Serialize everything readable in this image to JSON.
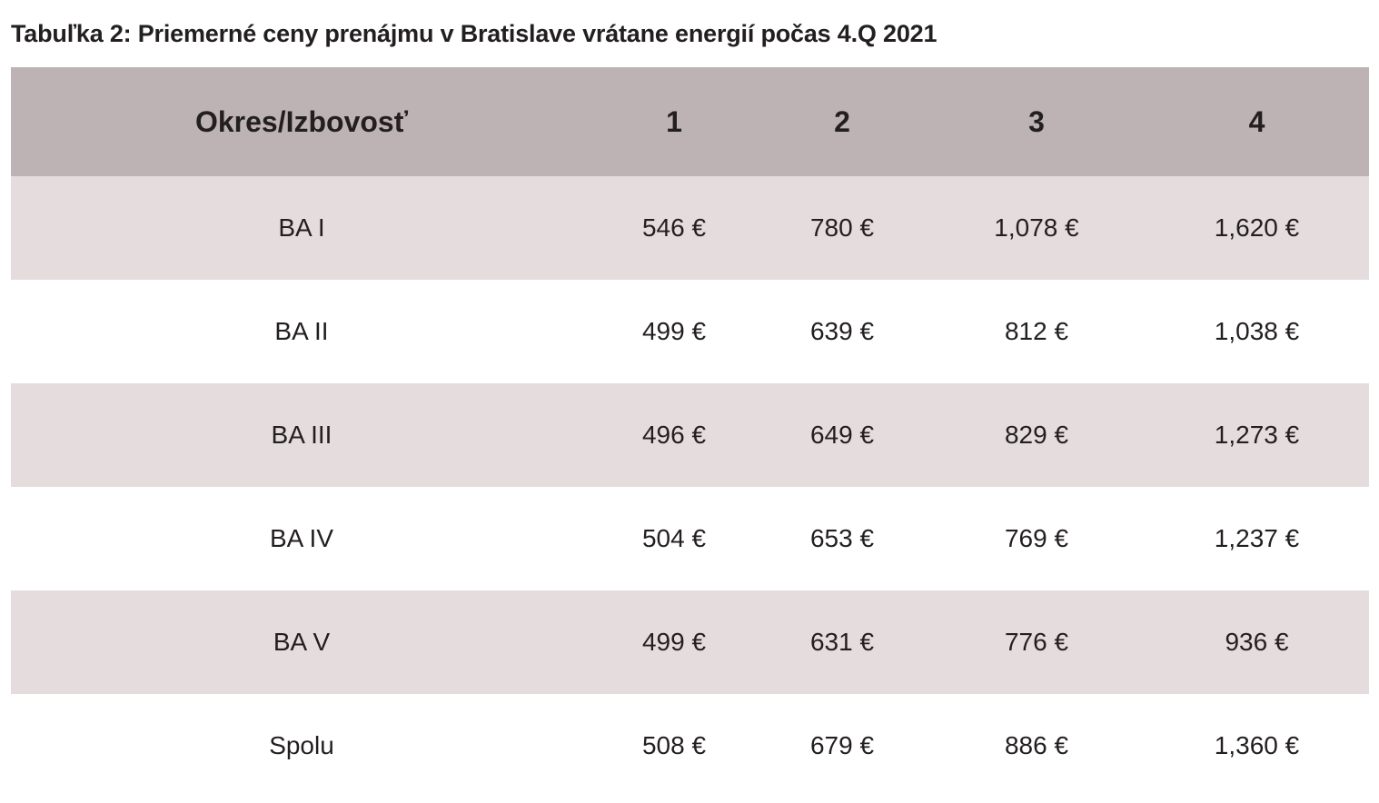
{
  "caption": "Tabuľka 2: Priemerné ceny prenájmu v Bratislave vrátane energií počas 4.Q 2021",
  "colors": {
    "header_bg": "#bdb3b4",
    "shaded_row_bg": "#e4dcdd",
    "text": "#231f20"
  },
  "table": {
    "headers": [
      "Okres/Izbovosť",
      "1",
      "2",
      "3",
      "4"
    ],
    "rows": [
      [
        "BA I",
        "546 €",
        "780 €",
        "1,078 €",
        "1,620 €"
      ],
      [
        "BA II",
        "499 €",
        "639 €",
        "812 €",
        "1,038 €"
      ],
      [
        "BA III",
        "496 €",
        "649 €",
        "829 €",
        "1,273 €"
      ],
      [
        "BA IV",
        "504 €",
        "653 €",
        "769 €",
        "1,237 €"
      ],
      [
        "BA V",
        "499 €",
        "631 €",
        "776 €",
        "936 €"
      ],
      [
        "Spolu",
        "508 €",
        "679 €",
        "886 €",
        "1,360 €"
      ]
    ]
  }
}
